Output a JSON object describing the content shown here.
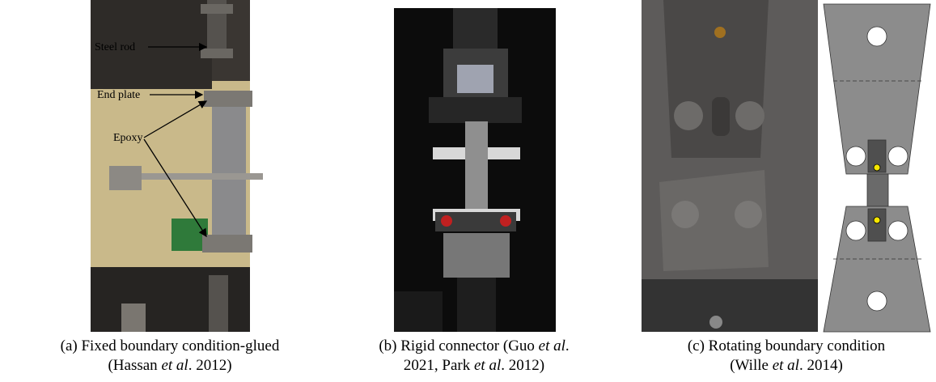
{
  "panels": [
    {
      "annotations": [
        "Steel rod",
        "End plate",
        "Epoxy"
      ],
      "caption": {
        "line1": [
          "(a) Fixed boundary condition-glued"
        ],
        "line2": [
          "(Hassan ",
          "et al",
          ". 2012)"
        ]
      }
    },
    {
      "caption": {
        "line1": [
          "(b) Rigid connector (Guo ",
          "et al",
          "."
        ],
        "line2": [
          "2021, Park ",
          "et al",
          ". 2012)"
        ]
      }
    },
    {
      "caption": {
        "line1": [
          "(c) Rotating boundary condition"
        ],
        "line2": [
          "(Wille ",
          "et al",
          ". 2014)"
        ]
      }
    }
  ]
}
